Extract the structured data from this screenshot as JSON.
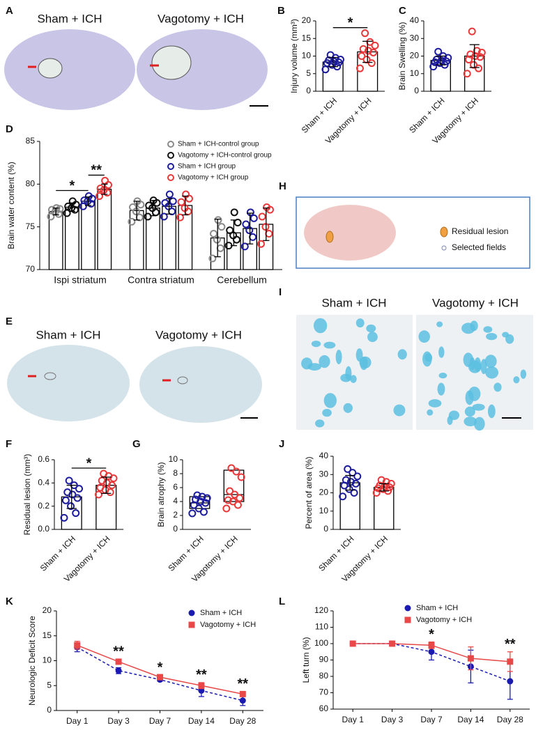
{
  "image_panels": [
    {
      "panel": "A",
      "labels": [
        "Sham + ICH",
        "Vagotomy + ICH"
      ]
    },
    {
      "panel": "E",
      "labels": [
        "Sham + ICH",
        "Vagotomy + ICH"
      ]
    },
    {
      "panel": "H",
      "legend": [
        "Residual lesion",
        "Selected fields"
      ]
    },
    {
      "panel": "I",
      "labels": [
        "Sham + ICH",
        "Vagotomy + ICH"
      ]
    }
  ],
  "chart_data": [
    {
      "panel": "B",
      "type": "bar",
      "ylabel": "Injury volume (mm³)",
      "categories": [
        "Sham + ICH",
        "Vagotomy + ICH"
      ],
      "values": [
        8.3,
        11.2
      ],
      "errors": [
        1.3,
        3.0
      ],
      "colors": [
        "#1c1c9c",
        "#e8383a"
      ],
      "points": [
        [
          6.2,
          7.0,
          7.5,
          8.0,
          8.2,
          8.5,
          8.8,
          9.0,
          9.5,
          10.3
        ],
        [
          6.5,
          8.0,
          9.0,
          10.0,
          11.0,
          11.5,
          12.0,
          13.0,
          14.0,
          16.5
        ]
      ],
      "ylim": [
        0,
        20
      ],
      "yticks": [
        0,
        5,
        10,
        15,
        20
      ],
      "annotations": [
        {
          "text": "*",
          "between": [
            0,
            1
          ]
        }
      ]
    },
    {
      "panel": "C",
      "type": "bar",
      "ylabel": "Brain Swelling (%)",
      "categories": [
        "Sham + ICH",
        "Vagotomy + ICH"
      ],
      "values": [
        17.5,
        20.0
      ],
      "errors": [
        2.5,
        6.5
      ],
      "colors": [
        "#1c1c9c",
        "#e8383a"
      ],
      "points": [
        [
          14,
          15,
          16,
          16.5,
          17,
          17.5,
          18,
          19,
          20,
          22.5
        ],
        [
          10,
          13,
          15,
          18,
          19.5,
          20,
          21,
          22,
          23,
          34
        ]
      ],
      "ylim": [
        0,
        40
      ],
      "yticks": [
        0,
        10,
        20,
        30,
        40
      ],
      "annotations": []
    },
    {
      "panel": "D",
      "type": "grouped_bar",
      "ylabel": "Brain water content (%)",
      "categories": [
        "Ispi striatum",
        "Contra striatum",
        "Cerebellum"
      ],
      "series": [
        {
          "name": "Sham + ICH-control group",
          "color": "#8a8a8a",
          "values": [
            76.8,
            76.9,
            73.7
          ],
          "errors": [
            0.4,
            1.1,
            2.2
          ],
          "points": [
            [
              76.2,
              76.5,
              76.8,
              77.0,
              77.1,
              77.2
            ],
            [
              75.6,
              76.1,
              76.8,
              77.3,
              77.6,
              78.0
            ],
            [
              71.3,
              72.5,
              73.5,
              74.2,
              75.0,
              75.8
            ]
          ]
        },
        {
          "name": "Vagotomy + ICH-control group",
          "color": "#111111",
          "values": [
            77.3,
            77.2,
            74.3
          ],
          "errors": [
            0.5,
            0.9,
            1.5
          ],
          "points": [
            [
              76.6,
              77.0,
              77.2,
              77.4,
              77.6,
              78.0
            ],
            [
              76.2,
              76.7,
              77.2,
              77.5,
              77.8,
              78.1
            ],
            [
              72.8,
              73.5,
              74.0,
              74.6,
              75.5,
              76.7
            ]
          ]
        },
        {
          "name": "Sham + ICH group",
          "color": "#1c1c9c",
          "values": [
            78.0,
            77.4,
            74.8
          ],
          "errors": [
            0.5,
            0.9,
            1.8
          ],
          "points": [
            [
              77.4,
              77.7,
              78.0,
              78.1,
              78.3,
              78.6
            ],
            [
              76.2,
              76.8,
              77.4,
              77.8,
              78.0,
              78.8
            ],
            [
              72.7,
              73.8,
              74.6,
              75.3,
              76.0,
              76.7
            ]
          ]
        },
        {
          "name": "Vagotomy + ICH group",
          "color": "#e8383a",
          "values": [
            79.4,
            77.5,
            75.3
          ],
          "errors": [
            0.6,
            1.1,
            1.9
          ],
          "points": [
            [
              78.6,
              79.0,
              79.3,
              79.5,
              79.9,
              80.4
            ],
            [
              76.1,
              76.8,
              77.2,
              77.9,
              78.3,
              78.8
            ],
            [
              73.0,
              74.2,
              75.0,
              76.2,
              77.0,
              77.3
            ]
          ]
        }
      ],
      "ylim": [
        70,
        85
      ],
      "yticks": [
        70,
        75,
        80,
        85
      ],
      "legend": "upper right",
      "annotations": [
        {
          "text": "*",
          "category": 0,
          "between": [
            0,
            2
          ]
        },
        {
          "text": "**",
          "category": 0,
          "between": [
            2,
            3
          ]
        }
      ]
    },
    {
      "panel": "F",
      "type": "bar",
      "ylabel": "Residual lesion (mm³)",
      "categories": [
        "Sham + ICH",
        "Vagotomy + ICH"
      ],
      "values": [
        0.28,
        0.38
      ],
      "errors": [
        0.1,
        0.07
      ],
      "colors": [
        "#1c1c9c",
        "#e8383a"
      ],
      "points": [
        [
          0.1,
          0.14,
          0.2,
          0.25,
          0.27,
          0.3,
          0.32,
          0.35,
          0.38,
          0.42
        ],
        [
          0.3,
          0.32,
          0.34,
          0.36,
          0.38,
          0.4,
          0.42,
          0.44,
          0.46,
          0.48
        ]
      ],
      "ylim": [
        0,
        0.6
      ],
      "yticks": [
        {
          "value": 0,
          "label": "0.0"
        },
        0.2,
        0.4,
        0.6
      ],
      "annotations": [
        {
          "text": "*",
          "between": [
            0,
            1
          ]
        }
      ]
    },
    {
      "panel": "G",
      "type": "box",
      "ylabel": "Brain atrophy (%)",
      "categories": [
        "Sham + ICH",
        "Vagotomy + ICH"
      ],
      "values": [
        3.8,
        5.0
      ],
      "lows": [
        3.0,
        4.0
      ],
      "highs": [
        4.7,
        8.5
      ],
      "colors": [
        "#1c1c9c",
        "#e8383a"
      ],
      "points": [
        [
          2.3,
          2.5,
          3.0,
          3.5,
          3.8,
          4.0,
          4.3,
          4.5,
          4.7,
          4.9
        ],
        [
          3.0,
          3.5,
          4.0,
          4.2,
          4.5,
          5.0,
          5.5,
          7.5,
          8.3,
          8.8
        ]
      ],
      "ylim": [
        0,
        10
      ],
      "yticks": [
        0,
        2,
        4,
        6,
        8,
        10
      ],
      "annotations": []
    },
    {
      "panel": "J",
      "type": "bar",
      "ylabel": "Percent of area (%)",
      "categories": [
        "Sham + ICH",
        "Vagotomy + ICH"
      ],
      "values": [
        25.5,
        23.0
      ],
      "errors": [
        4.0,
        2.0
      ],
      "colors": [
        "#1c1c9c",
        "#e8383a"
      ],
      "points": [
        [
          18,
          20,
          22,
          24,
          25,
          26,
          27,
          29,
          31,
          33
        ],
        [
          20,
          21,
          22,
          22.5,
          23,
          23.5,
          24,
          25,
          26,
          27
        ]
      ],
      "ylim": [
        0,
        40
      ],
      "yticks": [
        0,
        10,
        20,
        30,
        40
      ],
      "annotations": []
    },
    {
      "panel": "K",
      "type": "line",
      "ylabel": "Neurologic Deficit Score",
      "categories": [
        "Day 1",
        "Day 3",
        "Day 7",
        "Day 14",
        "Day 28"
      ],
      "series": [
        {
          "name": "Sham + ICH",
          "color": "#1a1ab0",
          "values": [
            12.7,
            8.0,
            6.2,
            4.0,
            2.0
          ],
          "errors": [
            0.9,
            0.6,
            0.3,
            1.2,
            1.0
          ]
        },
        {
          "name": "Vagotomy + ICH",
          "color": "#e84848",
          "values": [
            13.1,
            9.8,
            6.7,
            5.0,
            3.3
          ],
          "errors": [
            0.8,
            0.5,
            0.4,
            0.6,
            0.5
          ]
        }
      ],
      "ylim": [
        0,
        20
      ],
      "yticks": [
        0,
        5,
        10,
        15,
        20
      ],
      "legend": "upper right",
      "annotations": [
        {
          "text": "**",
          "index": 1
        },
        {
          "text": "*",
          "index": 2
        },
        {
          "text": "**",
          "index": 3
        },
        {
          "text": "**",
          "index": 4
        }
      ]
    },
    {
      "panel": "L",
      "type": "line",
      "ylabel": "Left turn (%)",
      "categories": [
        "Day 1",
        "Day 3",
        "Day 7",
        "Day 14",
        "Day 28"
      ],
      "series": [
        {
          "name": "Sham + ICH",
          "color": "#1a1ab0",
          "values": [
            100,
            100,
            95,
            86,
            77
          ],
          "errors": [
            0,
            0,
            5,
            10,
            11
          ]
        },
        {
          "name": "Vagotomy + ICH",
          "color": "#e84848",
          "values": [
            100,
            100,
            99,
            91,
            89
          ],
          "errors": [
            0,
            0,
            2,
            7,
            6
          ]
        }
      ],
      "ylim": [
        60,
        120
      ],
      "yticks": [
        60,
        70,
        80,
        90,
        100,
        110,
        120
      ],
      "legend": "upper right",
      "annotations": [
        {
          "text": "*",
          "index": 2
        },
        {
          "text": "**",
          "index": 4
        }
      ]
    }
  ]
}
